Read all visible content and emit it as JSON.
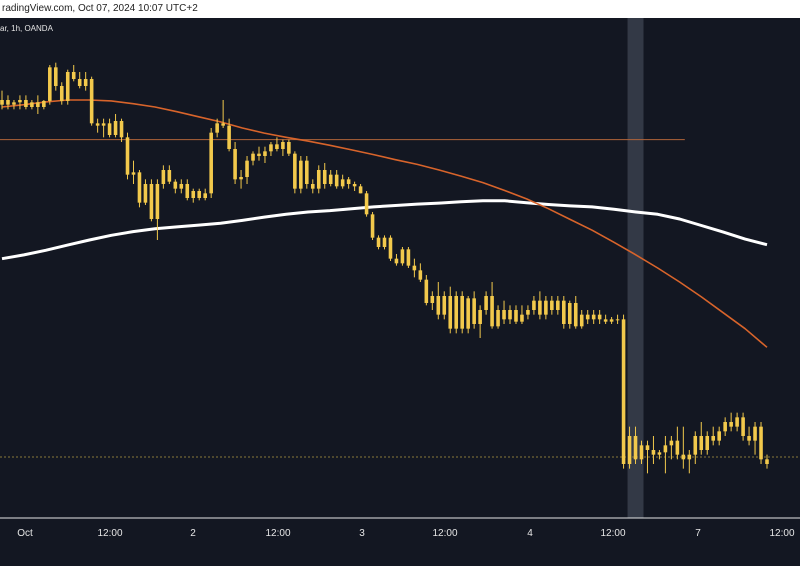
{
  "header": {
    "caption": "radingView.com, Oct 07, 2024 10:07 UTC+2"
  },
  "colors": {
    "background": "#131722",
    "candle": "#f2c94c",
    "ema_fast": "#d8642b",
    "ma_slow": "#ffffff",
    "level_line": "#b0643a",
    "dotted_line": "#8a7a3a",
    "highlight": "#3a3f4c",
    "axis_text": "#e6e6e6"
  },
  "symbol": {
    "text": "ar, 1h, OANDA"
  },
  "chart_data": {
    "type": "candlestick",
    "timeframe": "1h",
    "x_ticks": [
      "Oct",
      "12:00",
      "2",
      "12:00",
      "3",
      "12:00",
      "4",
      "12:00",
      "7",
      "12:00"
    ],
    "candles": [
      {
        "o": 31,
        "h": 34,
        "l": 30,
        "c": 32
      },
      {
        "o": 32,
        "h": 33,
        "l": 30,
        "c": 31
      },
      {
        "o": 31,
        "h": 32,
        "l": 30,
        "c": 31.5
      },
      {
        "o": 31.5,
        "h": 33,
        "l": 30,
        "c": 32
      },
      {
        "o": 32,
        "h": 33,
        "l": 30,
        "c": 30.5
      },
      {
        "o": 30.5,
        "h": 32,
        "l": 30,
        "c": 31.5
      },
      {
        "o": 31.5,
        "h": 33,
        "l": 29,
        "c": 30.5
      },
      {
        "o": 30.5,
        "h": 32,
        "l": 30,
        "c": 31.8
      },
      {
        "o": 31.8,
        "h": 39.5,
        "l": 31,
        "c": 39
      },
      {
        "o": 39,
        "h": 40,
        "l": 34,
        "c": 35
      },
      {
        "o": 35,
        "h": 35.8,
        "l": 31,
        "c": 31.8
      },
      {
        "o": 31.8,
        "h": 38.5,
        "l": 31,
        "c": 38
      },
      {
        "o": 38,
        "h": 39.5,
        "l": 36,
        "c": 36.5
      },
      {
        "o": 36.5,
        "h": 38,
        "l": 34.5,
        "c": 35
      },
      {
        "o": 35,
        "h": 38,
        "l": 34,
        "c": 36.5
      },
      {
        "o": 36.5,
        "h": 37,
        "l": 26.5,
        "c": 27
      },
      {
        "o": 27,
        "h": 28,
        "l": 25,
        "c": 26.5
      },
      {
        "o": 26.5,
        "h": 28,
        "l": 24,
        "c": 27
      },
      {
        "o": 27,
        "h": 28,
        "l": 24,
        "c": 24.5
      },
      {
        "o": 24.5,
        "h": 29,
        "l": 24,
        "c": 27.5
      },
      {
        "o": 27.5,
        "h": 28,
        "l": 23,
        "c": 24
      },
      {
        "o": 24,
        "h": 25,
        "l": 15,
        "c": 16
      },
      {
        "o": 16,
        "h": 19,
        "l": 14,
        "c": 16.5
      },
      {
        "o": 16.5,
        "h": 17,
        "l": 9,
        "c": 10
      },
      {
        "o": 10,
        "h": 15,
        "l": 9.5,
        "c": 14
      },
      {
        "o": 14,
        "h": 15,
        "l": 6,
        "c": 6.5
      },
      {
        "o": 6.5,
        "h": 15,
        "l": 2,
        "c": 14
      },
      {
        "o": 14,
        "h": 18,
        "l": 13,
        "c": 17
      },
      {
        "o": 17,
        "h": 18,
        "l": 14,
        "c": 14.5
      },
      {
        "o": 14.5,
        "h": 15,
        "l": 12,
        "c": 13
      },
      {
        "o": 13,
        "h": 15,
        "l": 12,
        "c": 14
      },
      {
        "o": 14,
        "h": 15,
        "l": 10.5,
        "c": 11
      },
      {
        "o": 11,
        "h": 13,
        "l": 10,
        "c": 12.5
      },
      {
        "o": 12.5,
        "h": 13,
        "l": 10.5,
        "c": 11
      },
      {
        "o": 11,
        "h": 13,
        "l": 10.5,
        "c": 12
      },
      {
        "o": 12,
        "h": 26,
        "l": 11,
        "c": 25
      },
      {
        "o": 25,
        "h": 28,
        "l": 24,
        "c": 27
      },
      {
        "o": 27,
        "h": 32,
        "l": 26,
        "c": 26.5
      },
      {
        "o": 26.5,
        "h": 28,
        "l": 21,
        "c": 21.5
      },
      {
        "o": 21.5,
        "h": 23,
        "l": 14,
        "c": 15
      },
      {
        "o": 15,
        "h": 17,
        "l": 13,
        "c": 15.5
      },
      {
        "o": 15.5,
        "h": 20,
        "l": 14,
        "c": 19
      },
      {
        "o": 19,
        "h": 21,
        "l": 18,
        "c": 20.5
      },
      {
        "o": 20.5,
        "h": 22,
        "l": 19,
        "c": 20
      },
      {
        "o": 20,
        "h": 22,
        "l": 18.5,
        "c": 21
      },
      {
        "o": 21,
        "h": 23,
        "l": 20,
        "c": 22.5
      },
      {
        "o": 22.5,
        "h": 24,
        "l": 21,
        "c": 21.5
      },
      {
        "o": 21.5,
        "h": 23.5,
        "l": 20,
        "c": 23
      },
      {
        "o": 23,
        "h": 23.5,
        "l": 20,
        "c": 20.5
      },
      {
        "o": 20.5,
        "h": 21,
        "l": 12,
        "c": 13
      },
      {
        "o": 13,
        "h": 20,
        "l": 12,
        "c": 19
      },
      {
        "o": 19,
        "h": 20,
        "l": 13,
        "c": 14
      },
      {
        "o": 14,
        "h": 15,
        "l": 12,
        "c": 13
      },
      {
        "o": 13,
        "h": 18,
        "l": 12,
        "c": 17
      },
      {
        "o": 17,
        "h": 18.5,
        "l": 13,
        "c": 14
      },
      {
        "o": 14,
        "h": 17,
        "l": 13.5,
        "c": 16
      },
      {
        "o": 16,
        "h": 17,
        "l": 13,
        "c": 13.5
      },
      {
        "o": 13.5,
        "h": 16,
        "l": 13,
        "c": 15
      },
      {
        "o": 15,
        "h": 15.5,
        "l": 13,
        "c": 14
      },
      {
        "o": 14,
        "h": 14.5,
        "l": 12.5,
        "c": 13.5
      },
      {
        "o": 13.5,
        "h": 14,
        "l": 12,
        "c": 12
      },
      {
        "o": 12,
        "h": 12.5,
        "l": 7,
        "c": 7.5
      },
      {
        "o": 7.5,
        "h": 8,
        "l": 2,
        "c": 2.5
      },
      {
        "o": 2.5,
        "h": 3,
        "l": 0,
        "c": 0.5
      },
      {
        "o": 0.5,
        "h": 3,
        "l": 0,
        "c": 2.5
      },
      {
        "o": 2.5,
        "h": 3,
        "l": -2.5,
        "c": -2
      },
      {
        "o": -2,
        "h": -1,
        "l": -3.5,
        "c": -3
      },
      {
        "o": -3,
        "h": 0.5,
        "l": -3.5,
        "c": 0
      },
      {
        "o": 0,
        "h": 0.5,
        "l": -4,
        "c": -3.5
      },
      {
        "o": -3.5,
        "h": -2,
        "l": -6,
        "c": -4.5
      },
      {
        "o": -4.5,
        "h": -3,
        "l": -7,
        "c": -6.5
      },
      {
        "o": -6.5,
        "h": -5.5,
        "l": -12,
        "c": -11.5
      },
      {
        "o": -11.5,
        "h": -9,
        "l": -13,
        "c": -10
      },
      {
        "o": -10,
        "h": -7,
        "l": -15,
        "c": -14
      },
      {
        "o": -14,
        "h": -9,
        "l": -15,
        "c": -10
      },
      {
        "o": -10,
        "h": -8,
        "l": -18,
        "c": -17
      },
      {
        "o": -17,
        "h": -9,
        "l": -18,
        "c": -10
      },
      {
        "o": -10,
        "h": -9,
        "l": -18,
        "c": -17
      },
      {
        "o": -17,
        "h": -10,
        "l": -18,
        "c": -10.5
      },
      {
        "o": -10.5,
        "h": -9,
        "l": -17,
        "c": -16
      },
      {
        "o": -16,
        "h": -12,
        "l": -19,
        "c": -13
      },
      {
        "o": -13,
        "h": -9,
        "l": -14,
        "c": -10
      },
      {
        "o": -10,
        "h": -7,
        "l": -17,
        "c": -16.5
      },
      {
        "o": -16.5,
        "h": -12,
        "l": -17,
        "c": -13
      },
      {
        "o": -13,
        "h": -11,
        "l": -16,
        "c": -15
      },
      {
        "o": -15,
        "h": -12,
        "l": -16,
        "c": -13
      },
      {
        "o": -13,
        "h": -12,
        "l": -16,
        "c": -15.5
      },
      {
        "o": -15.5,
        "h": -12,
        "l": -16,
        "c": -14
      },
      {
        "o": -14,
        "h": -12,
        "l": -15,
        "c": -13
      },
      {
        "o": -13,
        "h": -10,
        "l": -14,
        "c": -11
      },
      {
        "o": -11,
        "h": -9,
        "l": -15,
        "c": -14
      },
      {
        "o": -14,
        "h": -10,
        "l": -15,
        "c": -11
      },
      {
        "o": -11,
        "h": -10,
        "l": -14,
        "c": -13
      },
      {
        "o": -13,
        "h": -10,
        "l": -14,
        "c": -11
      },
      {
        "o": -11,
        "h": -10,
        "l": -17,
        "c": -16
      },
      {
        "o": -16,
        "h": -11,
        "l": -17,
        "c": -11.5
      },
      {
        "o": -11.5,
        "h": -10,
        "l": -17,
        "c": -16.5
      },
      {
        "o": -16.5,
        "h": -13,
        "l": -17,
        "c": -14
      },
      {
        "o": -14,
        "h": -13,
        "l": -16,
        "c": -15
      },
      {
        "o": -15,
        "h": -13,
        "l": -16,
        "c": -14
      },
      {
        "o": -14,
        "h": -13,
        "l": -16,
        "c": -15
      },
      {
        "o": -15,
        "h": -14,
        "l": -16,
        "c": -15.5
      },
      {
        "o": -15.5,
        "h": -14.5,
        "l": -16,
        "c": -15
      },
      {
        "o": -15,
        "h": -14,
        "l": -16,
        "c": -15
      },
      {
        "o": -15,
        "h": -14,
        "l": -47,
        "c": -46
      },
      {
        "o": -46,
        "h": -38,
        "l": -47,
        "c": -40
      },
      {
        "o": -40,
        "h": -38,
        "l": -46,
        "c": -45
      },
      {
        "o": -45,
        "h": -41,
        "l": -46,
        "c": -42
      },
      {
        "o": -42,
        "h": -41,
        "l": -48,
        "c": -43
      },
      {
        "o": -43,
        "h": -40,
        "l": -46,
        "c": -44
      },
      {
        "o": -44,
        "h": -43,
        "l": -45,
        "c": -43.5
      },
      {
        "o": -43.5,
        "h": -40,
        "l": -48,
        "c": -42
      },
      {
        "o": -42,
        "h": -40,
        "l": -45,
        "c": -41
      },
      {
        "o": -41,
        "h": -38,
        "l": -45,
        "c": -44
      },
      {
        "o": -44,
        "h": -38,
        "l": -47,
        "c": -45
      },
      {
        "o": -45,
        "h": -43,
        "l": -48,
        "c": -44
      },
      {
        "o": -44,
        "h": -39,
        "l": -46,
        "c": -40
      },
      {
        "o": -40,
        "h": -37,
        "l": -44,
        "c": -43
      },
      {
        "o": -43,
        "h": -39,
        "l": -44,
        "c": -40
      },
      {
        "o": -40,
        "h": -38,
        "l": -42,
        "c": -41
      },
      {
        "o": -41,
        "h": -38,
        "l": -42,
        "c": -39
      },
      {
        "o": -39,
        "h": -36,
        "l": -40,
        "c": -37
      },
      {
        "o": -37,
        "h": -35,
        "l": -39,
        "c": -38
      },
      {
        "o": -38,
        "h": -35,
        "l": -39,
        "c": -36
      },
      {
        "o": -36,
        "h": -35,
        "l": -41,
        "c": -40
      },
      {
        "o": -40,
        "h": -38,
        "l": -42,
        "c": -41
      },
      {
        "o": -41,
        "h": -37,
        "l": -44,
        "c": -38
      },
      {
        "o": -38,
        "h": -37,
        "l": -46,
        "c": -45
      },
      {
        "o": -45,
        "h": -44,
        "l": -47,
        "c": -46
      }
    ],
    "ema_fast": [
      30.5,
      31,
      31.6,
      32,
      32,
      31.8,
      31.2,
      30.5,
      29.5,
      28.4,
      27.3,
      26,
      24.9,
      24,
      23.2,
      22.3,
      21.3,
      20.3,
      19.2,
      18.2,
      17,
      15.7,
      14.3,
      12.6,
      10.8,
      8.7,
      6.4,
      4.1,
      1.5,
      -1.2,
      -4,
      -7,
      -10.2,
      -13.6,
      -17,
      -21
    ],
    "ma_slow": [
      -2,
      -1.2,
      -0.2,
      0.9,
      2,
      3,
      3.8,
      4.4,
      4.8,
      5.2,
      5.6,
      6.2,
      6.9,
      7.5,
      8,
      8.3,
      8.7,
      9.1,
      9.4,
      9.7,
      9.9,
      10.2,
      10.4,
      10.4,
      10,
      9.6,
      9.3,
      9.1,
      8.6,
      8,
      7.5,
      6.5,
      5.1,
      3.7,
      2.2,
      1
    ],
    "levels": [
      {
        "kind": "solid",
        "value": 23.5,
        "x_from": 0,
        "x_to": 0.856
      },
      {
        "kind": "dotted",
        "value": -44.5,
        "x_from": 0,
        "x_to": 1
      }
    ],
    "highlight_ticks": [
      105,
      107
    ],
    "grid": false,
    "legend": "none"
  }
}
